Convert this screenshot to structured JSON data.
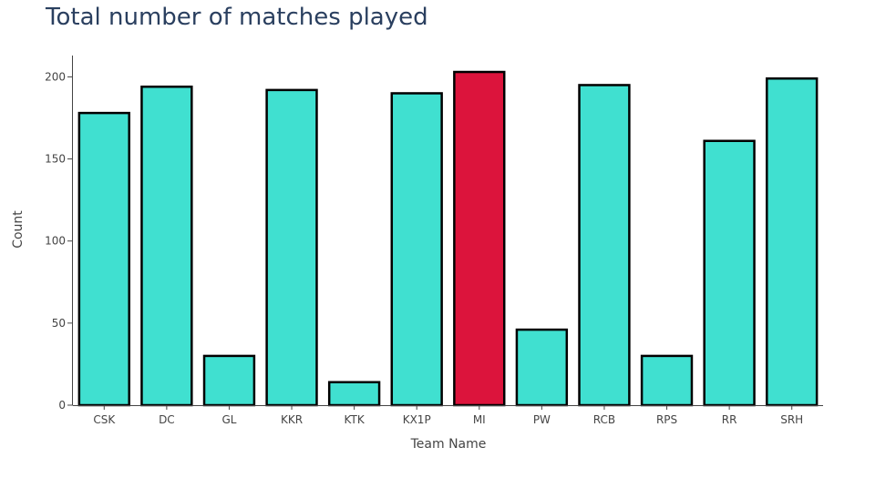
{
  "chart_data": {
    "type": "bar",
    "title": "Total number of matches played",
    "xlabel": "Team Name",
    "ylabel": "Count",
    "categories": [
      "CSK",
      "DC",
      "GL",
      "KKR",
      "KTK",
      "KX1P",
      "MI",
      "PW",
      "RCB",
      "RPS",
      "RR",
      "SRH"
    ],
    "values": [
      178,
      194,
      30,
      192,
      14,
      190,
      203,
      46,
      195,
      30,
      161,
      199
    ],
    "ylim": [
      0,
      213
    ],
    "yticks": [
      0,
      50,
      100,
      150,
      200
    ],
    "grid": false,
    "colors": {
      "default": "#40E0D0",
      "highlight": "#DC143C",
      "outline": "#000000"
    },
    "highlight_category": "MI"
  }
}
